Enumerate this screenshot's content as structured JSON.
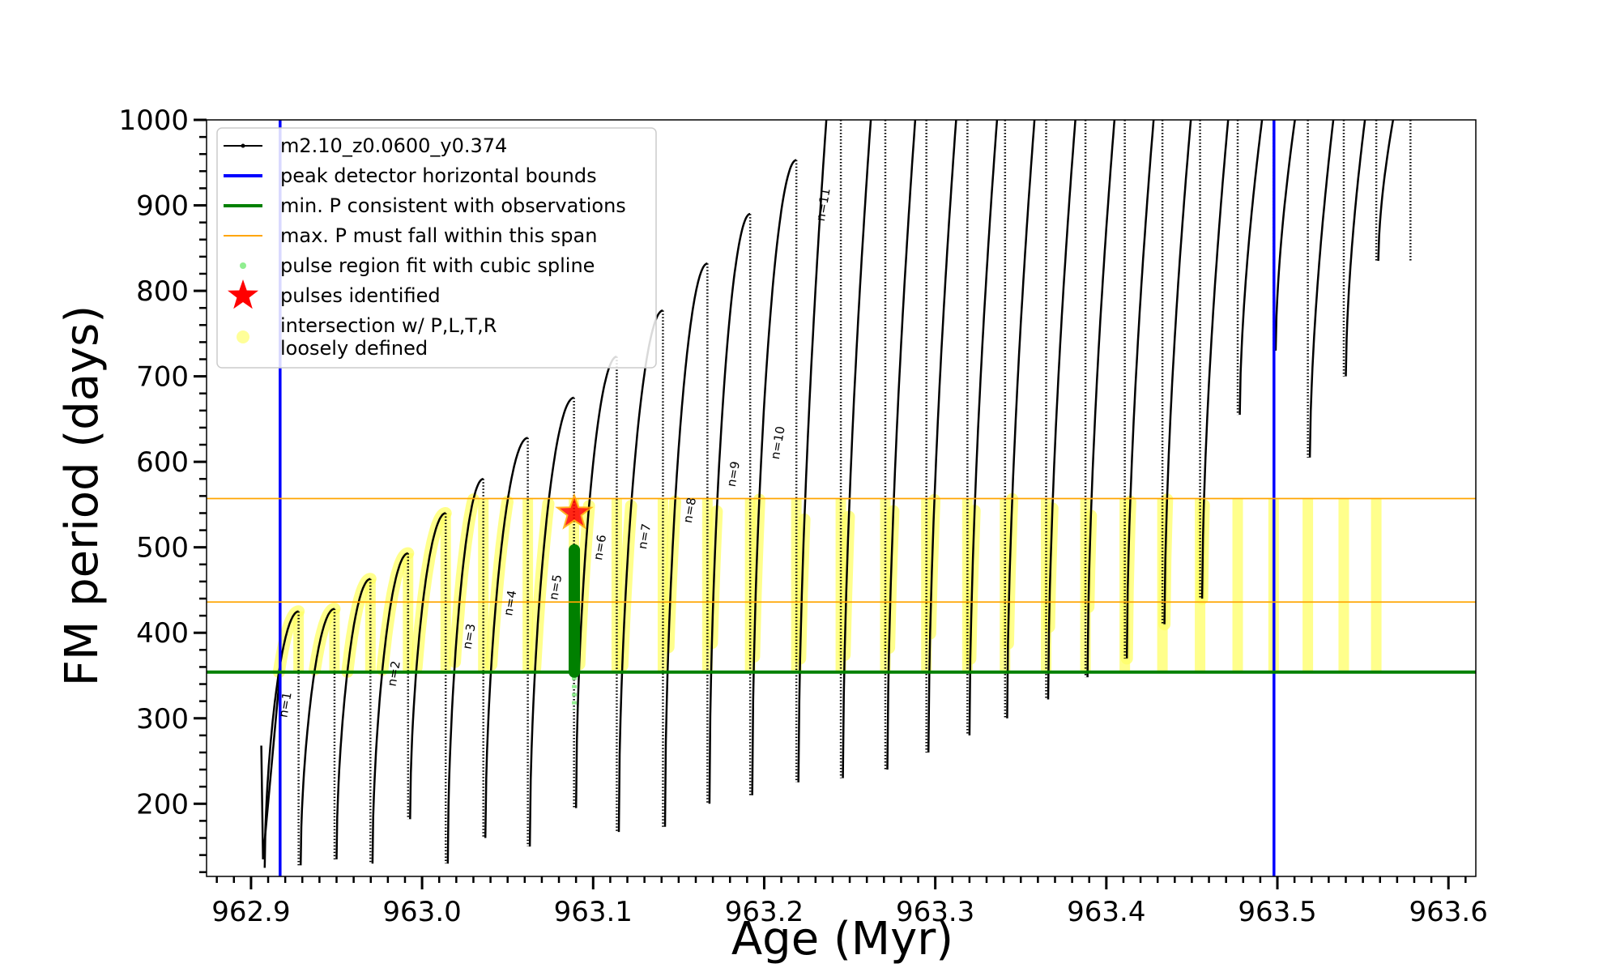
{
  "chart_data": {
    "type": "line",
    "xlabel": "Age (Myr)",
    "ylabel": "FM period (days)",
    "xlim": [
      962.874,
      963.616
    ],
    "ylim": [
      115,
      1000
    ],
    "xticks": [
      "962.9",
      "963.0",
      "963.1",
      "963.2",
      "963.3",
      "963.4",
      "963.5",
      "963.6"
    ],
    "yticks": [
      "200",
      "300",
      "400",
      "500",
      "600",
      "700",
      "800",
      "900",
      "1000"
    ],
    "grid": false,
    "legend_position": "top-left",
    "legend": [
      {
        "label": "m2.10_z0.0600_y0.374",
        "kind": "line-dot",
        "color": "#000000"
      },
      {
        "label": "peak detector horizontal bounds",
        "kind": "line",
        "color": "#0000ff"
      },
      {
        "label": "min. P consistent with observations",
        "kind": "line",
        "color": "#008000"
      },
      {
        "label": "max. P must fall within this span",
        "kind": "thin-line",
        "color": "#ffa500"
      },
      {
        "label": "pulse region fit with cubic spline",
        "kind": "dot",
        "color": "#90ee90"
      },
      {
        "label": "pulses identified",
        "kind": "star",
        "color": "#ff0000"
      },
      {
        "label": "intersection w/ P,L,T,R",
        "label2": "loosely defined",
        "kind": "bigdot",
        "color": "#ffff99"
      }
    ],
    "vertical_lines": [
      {
        "x": 962.917,
        "color": "#0000ff",
        "role": "peak detector horizontal bounds"
      },
      {
        "x": 963.498,
        "color": "#0000ff",
        "role": "peak detector horizontal bounds"
      }
    ],
    "horizontal_lines": [
      {
        "y": 354,
        "color": "#008000",
        "role": "min. P consistent with observations"
      },
      {
        "y": 436,
        "color": "#ffa500",
        "role": "max. P span lower"
      },
      {
        "y": 557,
        "color": "#ffa500",
        "role": "max. P span upper"
      }
    ],
    "pulses": [
      {
        "start": 962.908,
        "peak": 425,
        "drop": 125,
        "label": "n=1"
      },
      {
        "start": 962.929,
        "peak": 428,
        "drop": 128,
        "label": ""
      },
      {
        "start": 962.95,
        "peak": 463,
        "drop": 135,
        "label": ""
      },
      {
        "start": 962.971,
        "peak": 493,
        "drop": 130,
        "label": "n=2"
      },
      {
        "start": 962.993,
        "peak": 540,
        "drop": 182,
        "label": ""
      },
      {
        "start": 963.015,
        "peak": 580,
        "drop": 130,
        "label": "n=3"
      },
      {
        "start": 963.037,
        "peak": 628,
        "drop": 160,
        "label": "n=4"
      },
      {
        "start": 963.063,
        "peak": 675,
        "drop": 150,
        "label": "n=5"
      },
      {
        "start": 963.09,
        "peak": 723,
        "drop": 195,
        "label": "n=6"
      },
      {
        "start": 963.115,
        "peak": 777,
        "drop": 167,
        "label": "n=7"
      },
      {
        "start": 963.142,
        "peak": 832,
        "drop": 173,
        "label": "n=8"
      },
      {
        "start": 963.168,
        "peak": 890,
        "drop": 200,
        "label": "n=9"
      },
      {
        "start": 963.193,
        "peak": 953,
        "drop": 210,
        "label": "n=10"
      },
      {
        "start": 963.22,
        "peak": 1000,
        "drop": 225,
        "label": "n=11"
      },
      {
        "start": 963.246,
        "peak": 1000,
        "drop": 230,
        "label": ""
      },
      {
        "start": 963.272,
        "peak": 1000,
        "drop": 240,
        "label": ""
      },
      {
        "start": 963.296,
        "peak": 1000,
        "drop": 260,
        "label": ""
      },
      {
        "start": 963.32,
        "peak": 1000,
        "drop": 280,
        "label": ""
      },
      {
        "start": 963.342,
        "peak": 1000,
        "drop": 300,
        "label": ""
      },
      {
        "start": 963.366,
        "peak": 1000,
        "drop": 322,
        "label": ""
      },
      {
        "start": 963.389,
        "peak": 1000,
        "drop": 348,
        "label": ""
      },
      {
        "start": 963.412,
        "peak": 1000,
        "drop": 370,
        "label": ""
      },
      {
        "start": 963.434,
        "peak": 1000,
        "drop": 410,
        "label": ""
      },
      {
        "start": 963.456,
        "peak": 1000,
        "drop": 440,
        "label": ""
      },
      {
        "start": 963.478,
        "peak": 1000,
        "drop": 655,
        "label": ""
      },
      {
        "start": 963.499,
        "peak": 1000,
        "drop": 730,
        "label": ""
      },
      {
        "start": 963.519,
        "peak": 1000,
        "drop": 605,
        "label": ""
      },
      {
        "start": 963.54,
        "peak": 1000,
        "drop": 700,
        "label": ""
      },
      {
        "start": 963.559,
        "peak": 1000,
        "drop": 835,
        "label": ""
      }
    ],
    "initial_segment": {
      "x": [
        962.906,
        962.907,
        962.917
      ],
      "y": [
        268,
        135,
        354
      ]
    },
    "spline_region": {
      "x": 963.089,
      "y_min": 310,
      "y_max": 500
    },
    "green_fit": {
      "x": 963.089,
      "y_min": 354,
      "y_max": 497
    },
    "pulse_identified": {
      "x": 963.089,
      "y": 540
    }
  }
}
